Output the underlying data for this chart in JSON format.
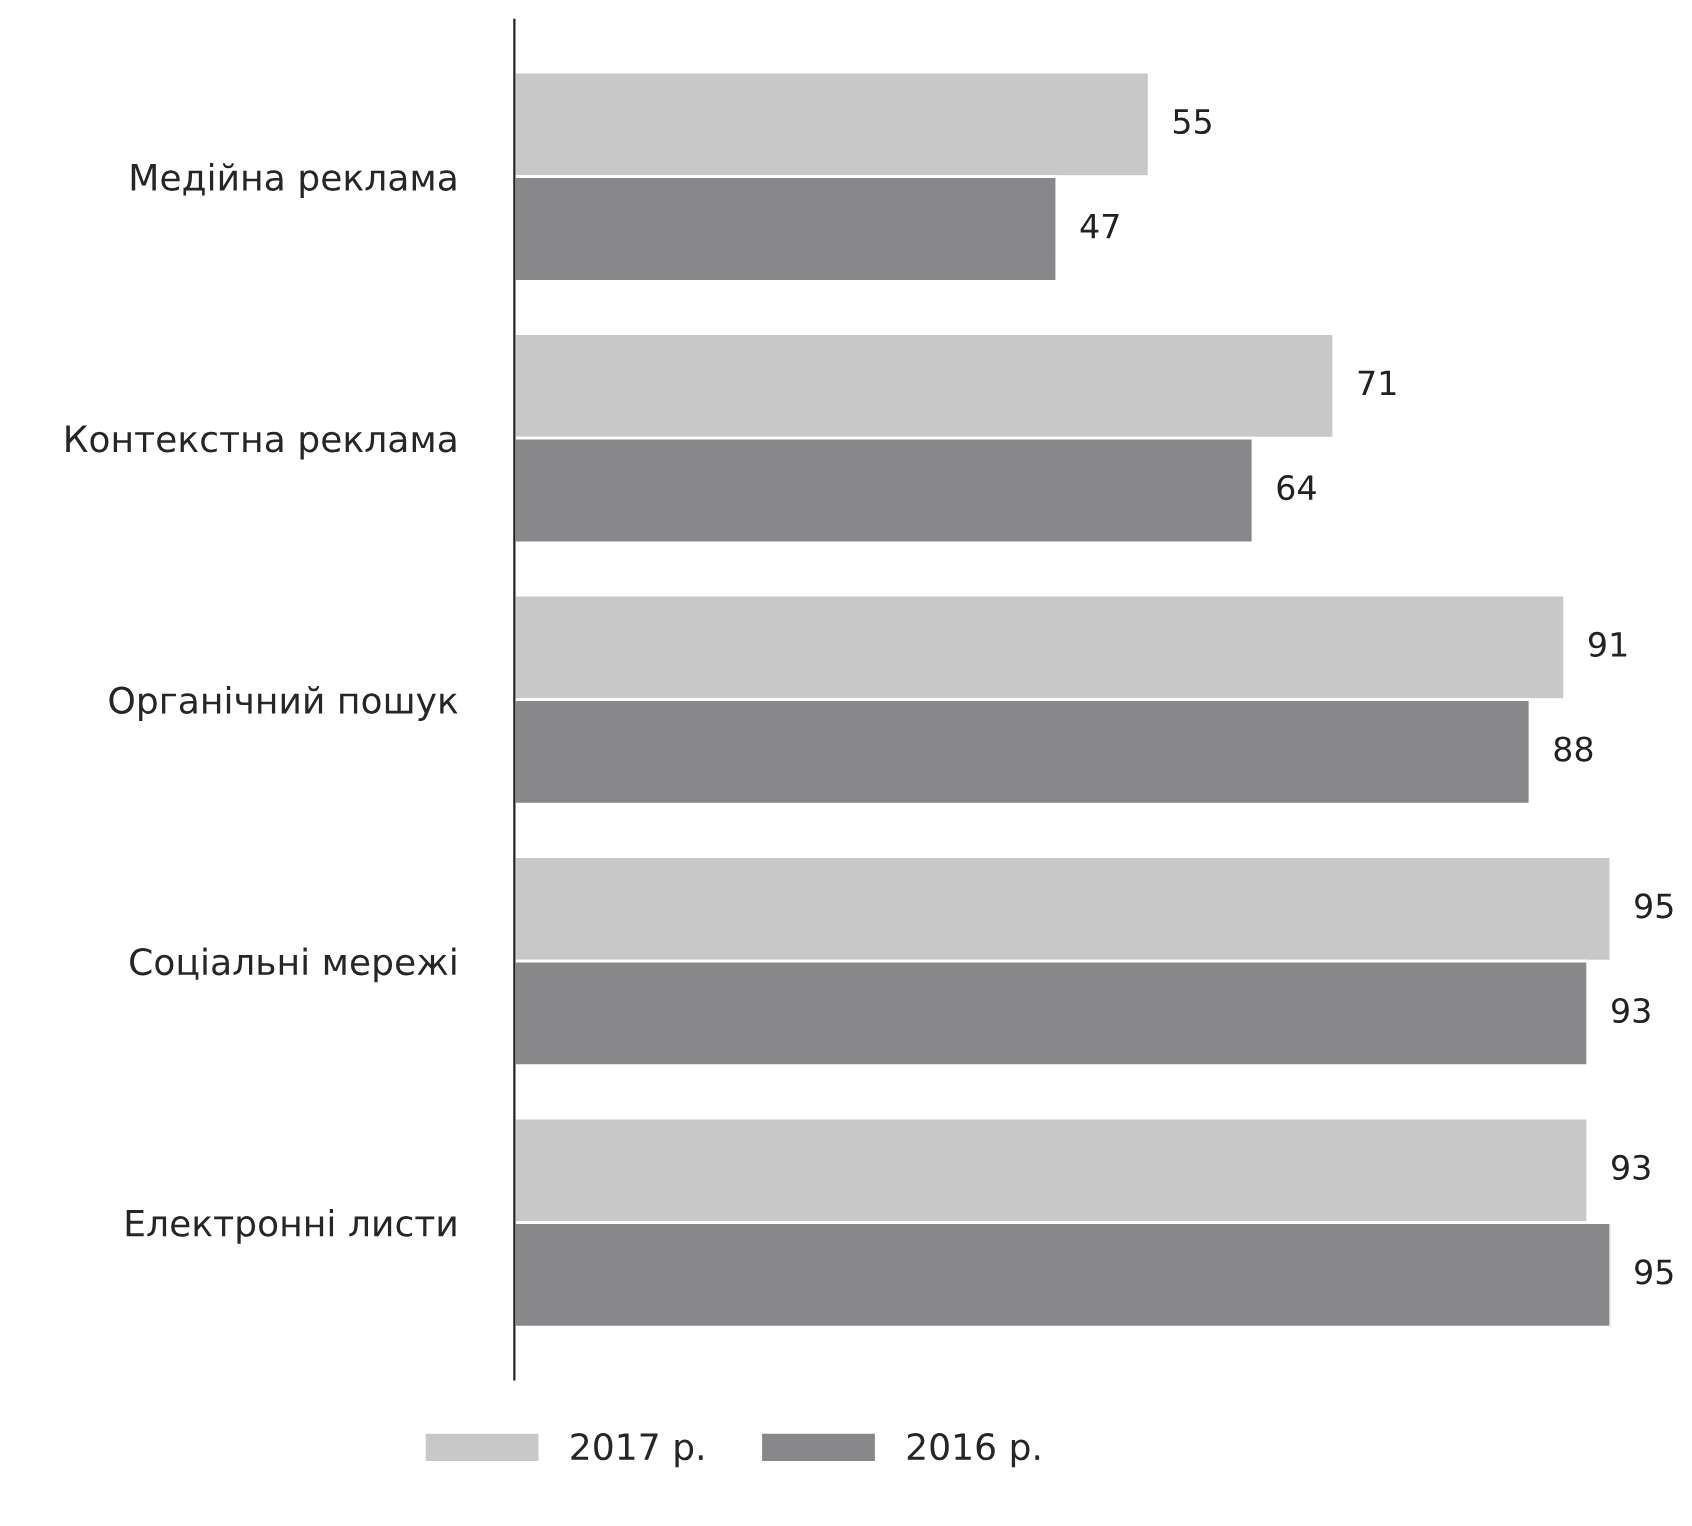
{
  "chart_data": {
    "type": "bar",
    "orientation": "horizontal",
    "categories": [
      "Медійна реклама",
      "Контекстна реклама",
      "Органічний пошук",
      "Соціальні мережі",
      "Електронні листи"
    ],
    "series": [
      {
        "name": "2017 р.",
        "color": "#c8c8c9",
        "values": [
          55,
          71,
          91,
          95,
          93
        ]
      },
      {
        "name": "2016 р.",
        "color": "#88888b",
        "values": [
          47,
          64,
          88,
          93,
          95
        ]
      }
    ],
    "tick_labels": "y",
    "data_labels": true,
    "legend": "bottom",
    "grid": false
  }
}
